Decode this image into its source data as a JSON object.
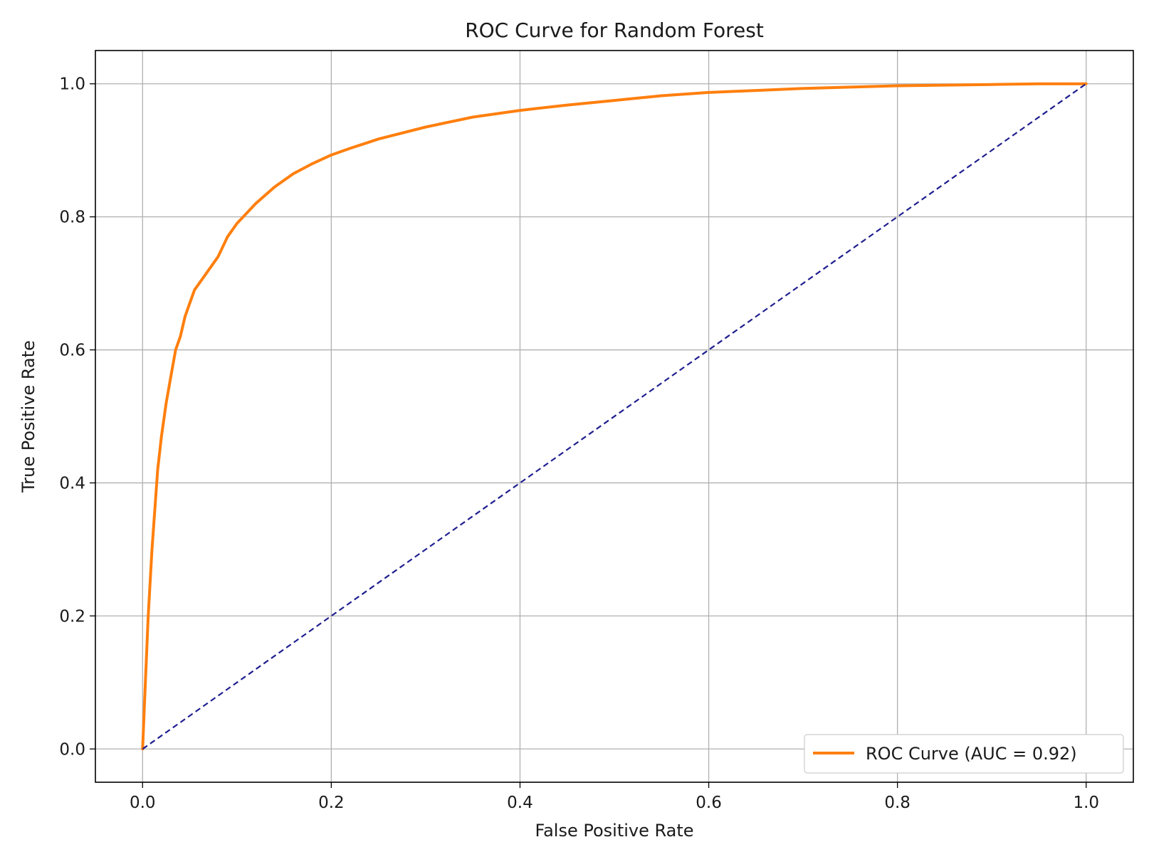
{
  "chart_data": {
    "type": "line",
    "title": "ROC Curve for Random Forest",
    "xlabel": "False Positive Rate",
    "ylabel": "True Positive Rate",
    "xlim": [
      -0.05,
      1.05
    ],
    "ylim": [
      -0.05,
      1.05
    ],
    "xticks": [
      0.0,
      0.2,
      0.4,
      0.6,
      0.8,
      1.0
    ],
    "yticks": [
      0.0,
      0.2,
      0.4,
      0.6,
      0.8,
      1.0
    ],
    "xtick_labels": [
      "0.0",
      "0.2",
      "0.4",
      "0.6",
      "0.8",
      "1.0"
    ],
    "ytick_labels": [
      "0.0",
      "0.2",
      "0.4",
      "0.6",
      "0.8",
      "1.0"
    ],
    "grid": true,
    "legend_placement": "lower-right",
    "series": [
      {
        "name": "ROC Curve (AUC = 0.92)",
        "color": "#ff7f0e",
        "style": "solid",
        "x": [
          0.0,
          0.003,
          0.006,
          0.01,
          0.013,
          0.016,
          0.02,
          0.025,
          0.03,
          0.035,
          0.04,
          0.045,
          0.05,
          0.055,
          0.06,
          0.07,
          0.08,
          0.09,
          0.1,
          0.12,
          0.14,
          0.16,
          0.18,
          0.2,
          0.22,
          0.25,
          0.3,
          0.35,
          0.4,
          0.45,
          0.5,
          0.55,
          0.6,
          0.65,
          0.7,
          0.75,
          0.8,
          0.85,
          0.9,
          0.95,
          1.0
        ],
        "y": [
          0.0,
          0.1,
          0.2,
          0.3,
          0.36,
          0.42,
          0.47,
          0.52,
          0.56,
          0.6,
          0.62,
          0.65,
          0.67,
          0.69,
          0.7,
          0.72,
          0.74,
          0.77,
          0.79,
          0.82,
          0.845,
          0.865,
          0.88,
          0.893,
          0.903,
          0.917,
          0.935,
          0.95,
          0.96,
          0.968,
          0.975,
          0.982,
          0.987,
          0.99,
          0.993,
          0.995,
          0.997,
          0.998,
          0.999,
          1.0,
          1.0
        ]
      },
      {
        "name": "",
        "color": "#1f1f8f",
        "style": "dashed",
        "x": [
          0.0,
          1.0
        ],
        "y": [
          0.0,
          1.0
        ]
      }
    ]
  }
}
